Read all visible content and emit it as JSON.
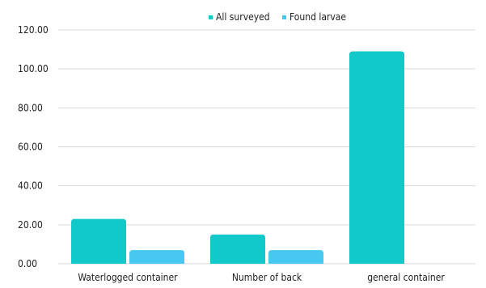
{
  "chart_data": {
    "type": "bar",
    "categories": [
      "Waterlogged container",
      "Number of back",
      "general container"
    ],
    "series": [
      {
        "name": "All surveyed",
        "values": [
          23,
          15,
          109
        ],
        "color": "#11c9c9"
      },
      {
        "name": "Found larvae",
        "values": [
          7,
          7,
          0
        ],
        "color": "#46c8f0"
      }
    ],
    "y_ticks": [
      "0.00",
      "20.00",
      "40.00",
      "60.00",
      "80.00",
      "100.00",
      "120.00"
    ],
    "ylim": [
      0,
      120
    ],
    "grid": true,
    "legend_position": "top"
  }
}
